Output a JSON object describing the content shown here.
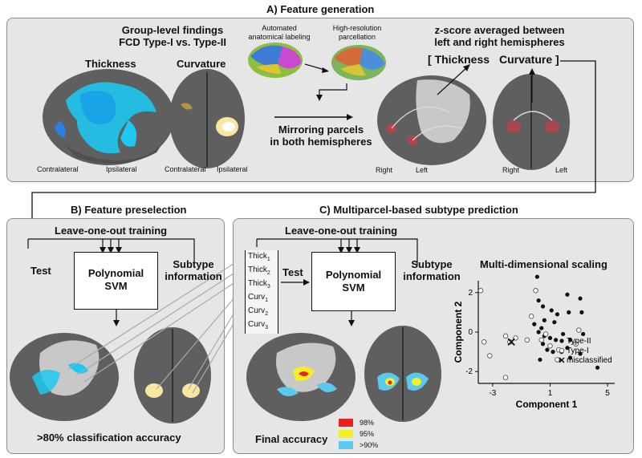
{
  "sections": {
    "a_title": "A) Feature generation",
    "b_title": "B) Feature preselection",
    "c_title": "C) Multiparcel-based subtype prediction"
  },
  "panel_a": {
    "group_line1": "Group-level findings",
    "group_line2": "FCD Type-I vs. Type-II",
    "thickness": "Thickness",
    "curvature": "Curvature",
    "contralateral": "Contralateral",
    "ipsilateral": "Ipsilateral",
    "auto_label_line1": "Automated",
    "auto_label_line2": "anatomical labeling",
    "hires_line1": "High-resolution",
    "hires_line2": "parcellation",
    "mirroring_line1": "Mirroring parcels",
    "mirroring_line2": "in both hemispheres",
    "zscore_line1": "z-score averaged between",
    "zscore_line2": "left and right hemispheres",
    "bracket_thickness": "Thickness",
    "bracket_curvature": "Curvature",
    "right": "Right",
    "left": "Left"
  },
  "panel_b": {
    "loo": "Leave-one-out training",
    "test": "Test",
    "svm_line1": "Polynomial",
    "svm_line2": "SVM",
    "subtype_line1": "Subtype",
    "subtype_line2": "information",
    "accuracy": ">80% classification accuracy"
  },
  "panel_c": {
    "loo": "Leave-one-out training",
    "test": "Test",
    "svm_line1": "Polynomial",
    "svm_line2": "SVM",
    "subtype_line1": "Subtype",
    "subtype_line2": "information",
    "features": [
      "Thick",
      "Thick",
      "Thick",
      "Curv",
      "Curv",
      "Curv"
    ],
    "feature_subs": [
      "1",
      "2",
      "3",
      "1",
      "2",
      "3"
    ],
    "final_accuracy": "Final accuracy",
    "legend": [
      {
        "label": "98%",
        "color": "#e8231f"
      },
      {
        "label": "95%",
        "color": "#f4f025"
      },
      {
        "label": ">90%",
        "color": "#5bc8ee"
      }
    ]
  },
  "colors": {
    "panel_bg": "#e6e6e6",
    "brain_gray": "#5f5f5f",
    "thickness_cyan": "#1ec8f0",
    "curvature_yellow": "#f7e7a0",
    "highlight_red": "#d9383f"
  },
  "chart_data": {
    "type": "scatter",
    "title": "Multi-dimensional scaling",
    "xlabel": "Component 1",
    "ylabel": "Component 2",
    "xlim": [
      -4,
      5.5
    ],
    "ylim": [
      -2.6,
      2.6
    ],
    "xticks": [
      -3,
      1,
      5
    ],
    "yticks": [
      2,
      0,
      -2
    ],
    "legend": [
      "Type-II",
      "Type-I",
      "misclassified"
    ],
    "legend_position": "right",
    "series": [
      {
        "name": "Type-II",
        "marker": "filled-circle",
        "points": [
          [
            0.1,
            2.8
          ],
          [
            0.2,
            1.6
          ],
          [
            0.5,
            1.3
          ],
          [
            1.1,
            1.1
          ],
          [
            2.2,
            1.9
          ],
          [
            3.1,
            1.7
          ],
          [
            3.2,
            1.0
          ],
          [
            2.3,
            1.0
          ],
          [
            1.5,
            0.9
          ],
          [
            1.3,
            0.5
          ],
          [
            0.6,
            0.6
          ],
          [
            0.4,
            0.2
          ],
          [
            0.2,
            0.0
          ],
          [
            -0.1,
            0.4
          ],
          [
            0.6,
            -0.2
          ],
          [
            1.0,
            -0.3
          ],
          [
            1.4,
            -0.4
          ],
          [
            1.9,
            -0.1
          ],
          [
            2.4,
            -0.4
          ],
          [
            2.2,
            -0.8
          ],
          [
            1.8,
            -1.0
          ],
          [
            1.2,
            -1.0
          ],
          [
            0.8,
            -0.9
          ],
          [
            0.5,
            -0.6
          ],
          [
            1.6,
            -1.4
          ],
          [
            2.4,
            -1.3
          ],
          [
            3.1,
            -1.1
          ],
          [
            0.3,
            -1.4
          ],
          [
            4.3,
            -1.8
          ],
          [
            3.3,
            -0.1
          ]
        ]
      },
      {
        "name": "Type-I",
        "marker": "open-circle",
        "points": [
          [
            -4.3,
            2.1
          ],
          [
            -3.6,
            -0.5
          ],
          [
            -3.2,
            -1.2
          ],
          [
            -2.1,
            -0.2
          ],
          [
            -1.8,
            -0.5
          ],
          [
            -1.4,
            -0.3
          ],
          [
            -0.6,
            -0.4
          ],
          [
            -0.3,
            0.8
          ],
          [
            0.0,
            2.1
          ],
          [
            0.4,
            -0.4
          ],
          [
            0.7,
            -0.1
          ],
          [
            1.0,
            -0.7
          ],
          [
            1.6,
            -0.9
          ],
          [
            1.5,
            -1.4
          ],
          [
            -2.1,
            -2.3
          ],
          [
            2.8,
            -0.6
          ],
          [
            3.0,
            0.1
          ]
        ]
      },
      {
        "name": "misclassified",
        "marker": "x",
        "points": [
          [
            -1.7,
            -0.5
          ]
        ]
      }
    ]
  }
}
